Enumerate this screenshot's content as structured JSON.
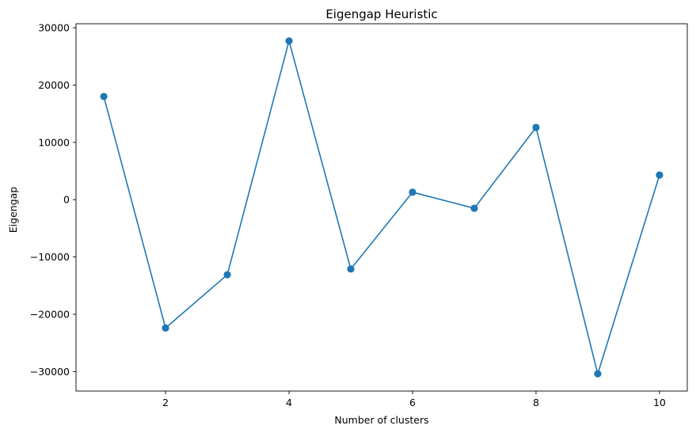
{
  "chart_data": {
    "type": "line",
    "title": "Eigengap Heuristic",
    "xlabel": "Number of clusters",
    "ylabel": "Eigengap",
    "x": [
      1,
      2,
      3,
      4,
      5,
      6,
      7,
      8,
      9,
      10
    ],
    "series": [
      {
        "values": [
          18000,
          -22400,
          -13100,
          27700,
          -12100,
          1300,
          -1500,
          12600,
          -30400,
          4300
        ],
        "color": "#1f77b4",
        "marker": "circle"
      }
    ],
    "xlim": [
      0.55,
      10.45
    ],
    "ylim": [
      -33400,
      30700
    ],
    "xticks": [
      2,
      4,
      6,
      8,
      10
    ],
    "yticks": [
      -30000,
      -20000,
      -10000,
      0,
      10000,
      20000,
      30000
    ],
    "grid": false,
    "legend": false
  }
}
